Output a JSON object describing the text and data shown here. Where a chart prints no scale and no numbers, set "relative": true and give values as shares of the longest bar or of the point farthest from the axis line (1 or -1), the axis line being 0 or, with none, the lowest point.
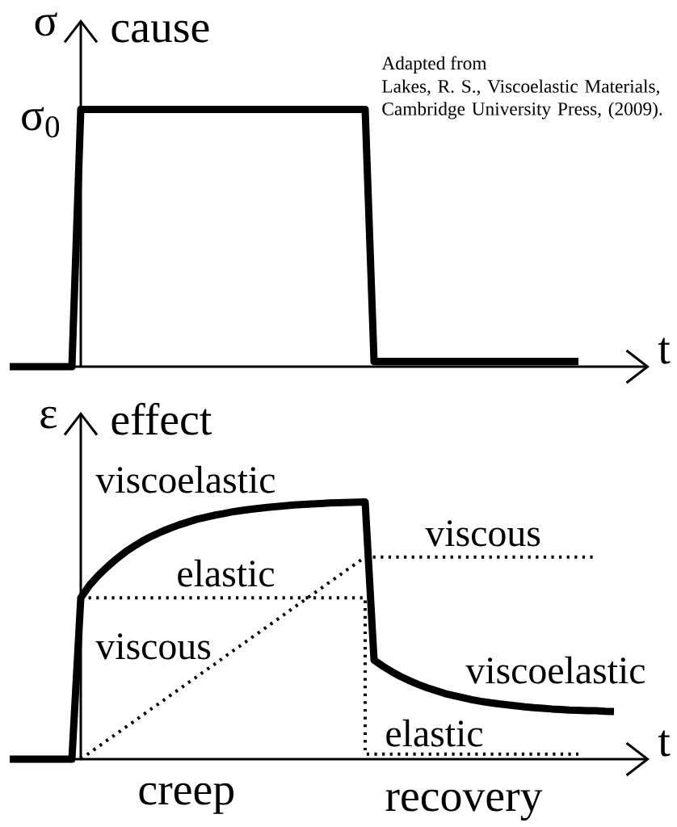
{
  "chart_data": [
    {
      "type": "line",
      "title": "cause",
      "xlabel": "t",
      "ylabel": "σ",
      "relative": true,
      "categories": [
        null,
        null,
        null,
        null,
        null,
        null,
        null,
        null,
        null,
        null,
        null,
        null,
        null,
        null,
        null,
        null,
        null,
        null,
        null,
        null,
        null,
        null,
        null,
        null,
        null,
        null,
        null,
        null,
        null,
        null,
        null,
        null,
        null,
        null,
        null,
        null,
        null,
        null,
        null,
        null,
        null,
        null,
        null,
        null,
        null,
        null,
        null,
        null,
        null,
        null,
        null,
        null,
        null,
        null,
        null,
        null,
        null,
        null,
        null,
        null,
        null,
        null,
        null,
        null,
        null,
        null,
        null,
        null,
        null,
        null,
        null,
        null,
        null
      ],
      "values": [
        0,
        0,
        0,
        0,
        0,
        0,
        0,
        0,
        1,
        1,
        1,
        1,
        1,
        1,
        1,
        1,
        1,
        1,
        1,
        1,
        1,
        1,
        1,
        1,
        1,
        1,
        1,
        1,
        1,
        1,
        1,
        1,
        1,
        1,
        1,
        1,
        1,
        1,
        1,
        1,
        1,
        0.02,
        0.02,
        0.02,
        0.02,
        0.02,
        0.02,
        0.02,
        0.02,
        0.02,
        0.02,
        0.02,
        0.02,
        0.02,
        0.02,
        0.02,
        0.02,
        0.02,
        0.02,
        0.02,
        0.02,
        0.02,
        0.02,
        0.02,
        0.02,
        null,
        null,
        null,
        null,
        null,
        null,
        null,
        null
      ],
      "color": "#000000",
      "annotations": [
        "σ$_{0}$",
        "Adapted from",
        "Lakes, R. S., Viscoelastic Materials, Cambridge University Press, (2009)."
      ]
    },
    {
      "type": "line",
      "title": "effect",
      "xlabel": "t",
      "ylabel": "ε",
      "relative": true,
      "categories": [
        null,
        null,
        null,
        null,
        null,
        null,
        null,
        null,
        null,
        null,
        null,
        null,
        null,
        null,
        null,
        null,
        null,
        null,
        null,
        null,
        null,
        null,
        null,
        null,
        null,
        null,
        null,
        null,
        null,
        null,
        null,
        null,
        null,
        null,
        null,
        null,
        null,
        null,
        null,
        null,
        null,
        null,
        null,
        null,
        null,
        null,
        null,
        null,
        null,
        null,
        null,
        null,
        null,
        null,
        null,
        null,
        null,
        null,
        null,
        null,
        null,
        null,
        null,
        null,
        null,
        null,
        null,
        null,
        null,
        null,
        null,
        null,
        null
      ],
      "series": [
        {
          "name": "viscoelastic",
          "color": "#000000",
          "values": [
            0,
            0,
            0,
            0,
            0,
            0,
            0,
            0,
            0.627,
            0.677,
            0.715,
            0.748,
            0.778,
            0.805,
            0.828,
            0.849,
            0.867,
            0.883,
            0.897,
            0.91,
            0.921,
            0.932,
            0.94,
            0.948,
            0.954,
            0.961,
            0.966,
            0.971,
            0.975,
            0.979,
            0.982,
            0.985,
            0.988,
            0.99,
            0.992,
            0.994,
            0.996,
            0.997,
            0.998,
            0.999,
            1,
            0.385,
            0.361,
            0.34,
            0.321,
            0.305,
            0.29,
            0.277,
            0.266,
            0.255,
            0.247,
            0.239,
            0.231,
            0.225,
            0.22,
            0.215,
            0.211,
            0.207,
            0.203,
            0.2,
            0.198,
            0.195,
            0.193,
            0.191,
            0.19,
            0.188,
            0.188,
            0.186,
            0.185,
            null,
            null,
            null,
            null
          ]
        },
        {
          "name": "elastic",
          "type": "step",
          "color": "#000000",
          "line_style": "dotted",
          "values": [
            null,
            null,
            null,
            null,
            null,
            null,
            null,
            null,
            0.627,
            0.627,
            0.627,
            0.627,
            0.627,
            0.627,
            0.627,
            0.627,
            0.627,
            0.627,
            0.627,
            0.627,
            0.627,
            0.627,
            0.627,
            0.627,
            0.627,
            0.627,
            0.627,
            0.627,
            0.627,
            0.627,
            0.627,
            0.627,
            0.627,
            0.627,
            0.627,
            0.627,
            0.627,
            0.627,
            0.627,
            0.627,
            0.02,
            0.02,
            0.02,
            0.02,
            0.02,
            0.02,
            0.02,
            0.02,
            0.02,
            0.02,
            0.02,
            0.02,
            0.02,
            0.02,
            0.02,
            0.02,
            0.02,
            0.02,
            0.02,
            0.02,
            0.02,
            0.02,
            0.02,
            0.02,
            0.02,
            null,
            null,
            null,
            null,
            null,
            null,
            null,
            null
          ]
        },
        {
          "name": "viscous",
          "color": "#000000",
          "line_style": "dotted",
          "values": [
            null,
            null,
            null,
            null,
            null,
            null,
            null,
            null,
            0,
            0.025,
            0.049,
            0.074,
            0.098,
            0.123,
            0.147,
            0.172,
            0.197,
            0.221,
            0.246,
            0.27,
            0.295,
            0.319,
            0.344,
            0.368,
            0.393,
            0.418,
            0.442,
            0.467,
            0.491,
            0.516,
            0.54,
            0.565,
            0.59,
            0.614,
            0.639,
            0.663,
            0.688,
            0.712,
            0.737,
            0.761,
            0.786,
            0.786,
            0.786,
            0.786,
            0.786,
            0.786,
            0.786,
            0.786,
            0.786,
            0.786,
            0.786,
            0.786,
            0.786,
            0.786,
            0.786,
            0.786,
            0.786,
            0.786,
            0.786,
            0.786,
            0.786,
            0.786,
            0.786,
            0.786,
            0.786,
            0.786,
            0.786,
            null,
            null,
            null,
            null,
            null,
            null
          ]
        }
      ],
      "annotations": [
        "creep",
        "recovery"
      ]
    }
  ]
}
